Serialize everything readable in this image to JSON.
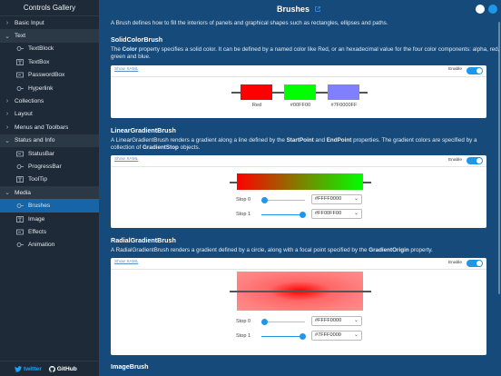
{
  "sidebar": {
    "title": "Controls Gallery",
    "items": [
      {
        "label": "Basic Input",
        "kind": "group",
        "open": false
      },
      {
        "label": "Text",
        "kind": "group",
        "open": true
      },
      {
        "label": "TextBlock",
        "kind": "sub"
      },
      {
        "label": "TextBox",
        "kind": "sub"
      },
      {
        "label": "PasswordBox",
        "kind": "sub"
      },
      {
        "label": "Hyperlink",
        "kind": "sub"
      },
      {
        "label": "Collections",
        "kind": "group",
        "open": false
      },
      {
        "label": "Layout",
        "kind": "group",
        "open": false
      },
      {
        "label": "Menus and Toolbars",
        "kind": "group",
        "open": false
      },
      {
        "label": "Status and Info",
        "kind": "group",
        "open": true
      },
      {
        "label": "StatusBar",
        "kind": "sub"
      },
      {
        "label": "ProgressBar",
        "kind": "sub"
      },
      {
        "label": "ToolTip",
        "kind": "sub"
      },
      {
        "label": "Media",
        "kind": "group",
        "open": true
      },
      {
        "label": "Brushes",
        "kind": "sub",
        "active": true
      },
      {
        "label": "Image",
        "kind": "sub"
      },
      {
        "label": "Effects",
        "kind": "sub"
      },
      {
        "label": "Animation",
        "kind": "sub"
      }
    ],
    "social": {
      "twitter": "twitter",
      "github": "GitHub"
    }
  },
  "header": {
    "title": "Brushes"
  },
  "intro": "A Brush defines how to fill the interiors of panels and graphical shapes such as rectangles, ellipses and paths.",
  "solid": {
    "title": "SolidColorBrush",
    "desc_pre": "The ",
    "desc_bold": "Color",
    "desc_post": " property specifies a solid color. It can be defined by a named color like Red, or an hexadecimal value for the four color components: alpha, red, green and blue.",
    "show_xaml": "Show XAML",
    "enable": "Enable",
    "swatches": [
      {
        "label": "Red",
        "color": "#ff0000"
      },
      {
        "label": "#00FF00",
        "color": "#00ff00"
      },
      {
        "label": "#7F0000FF",
        "color": "#8080ff"
      }
    ]
  },
  "linear": {
    "title": "LinearGradientBrush",
    "desc_pre": "A LinearGradientBrush renders a gradient along a line defined by the ",
    "desc_b1": "StartPoint",
    "desc_mid": " and ",
    "desc_b2": "EndPoint",
    "desc_mid2": " properties. The gradient colors are specified by a collection of ",
    "desc_b3": "GradientStop",
    "desc_post": " objects.",
    "show_xaml": "Show XAML",
    "enable": "Enable",
    "stop0_label": "Stop 0",
    "stop0_value": "#FFFF0000",
    "stop0_position": 0,
    "stop1_label": "Stop 1",
    "stop1_value": "#FF00FF00",
    "stop1_position": 1
  },
  "radial": {
    "title": "RadialGradientBrush",
    "desc_pre": "A RadialGradientBrush renders a gradient defined by a circle, along with a focal point specified by the ",
    "desc_bold": "GradientOrigin",
    "desc_post": " property.",
    "show_xaml": "Show XAML",
    "enable": "Enable",
    "stop0_label": "Stop 0",
    "stop0_value": "#FFFF0000",
    "stop0_position": 0,
    "stop1_label": "Stop 1",
    "stop1_value": "#7FFF0000",
    "stop1_position": 1
  },
  "image_section": {
    "title": "ImageBrush"
  },
  "colors": {
    "accent": "#1f97e8",
    "background": "#164a7a",
    "sidebar": "#1e2a37"
  }
}
